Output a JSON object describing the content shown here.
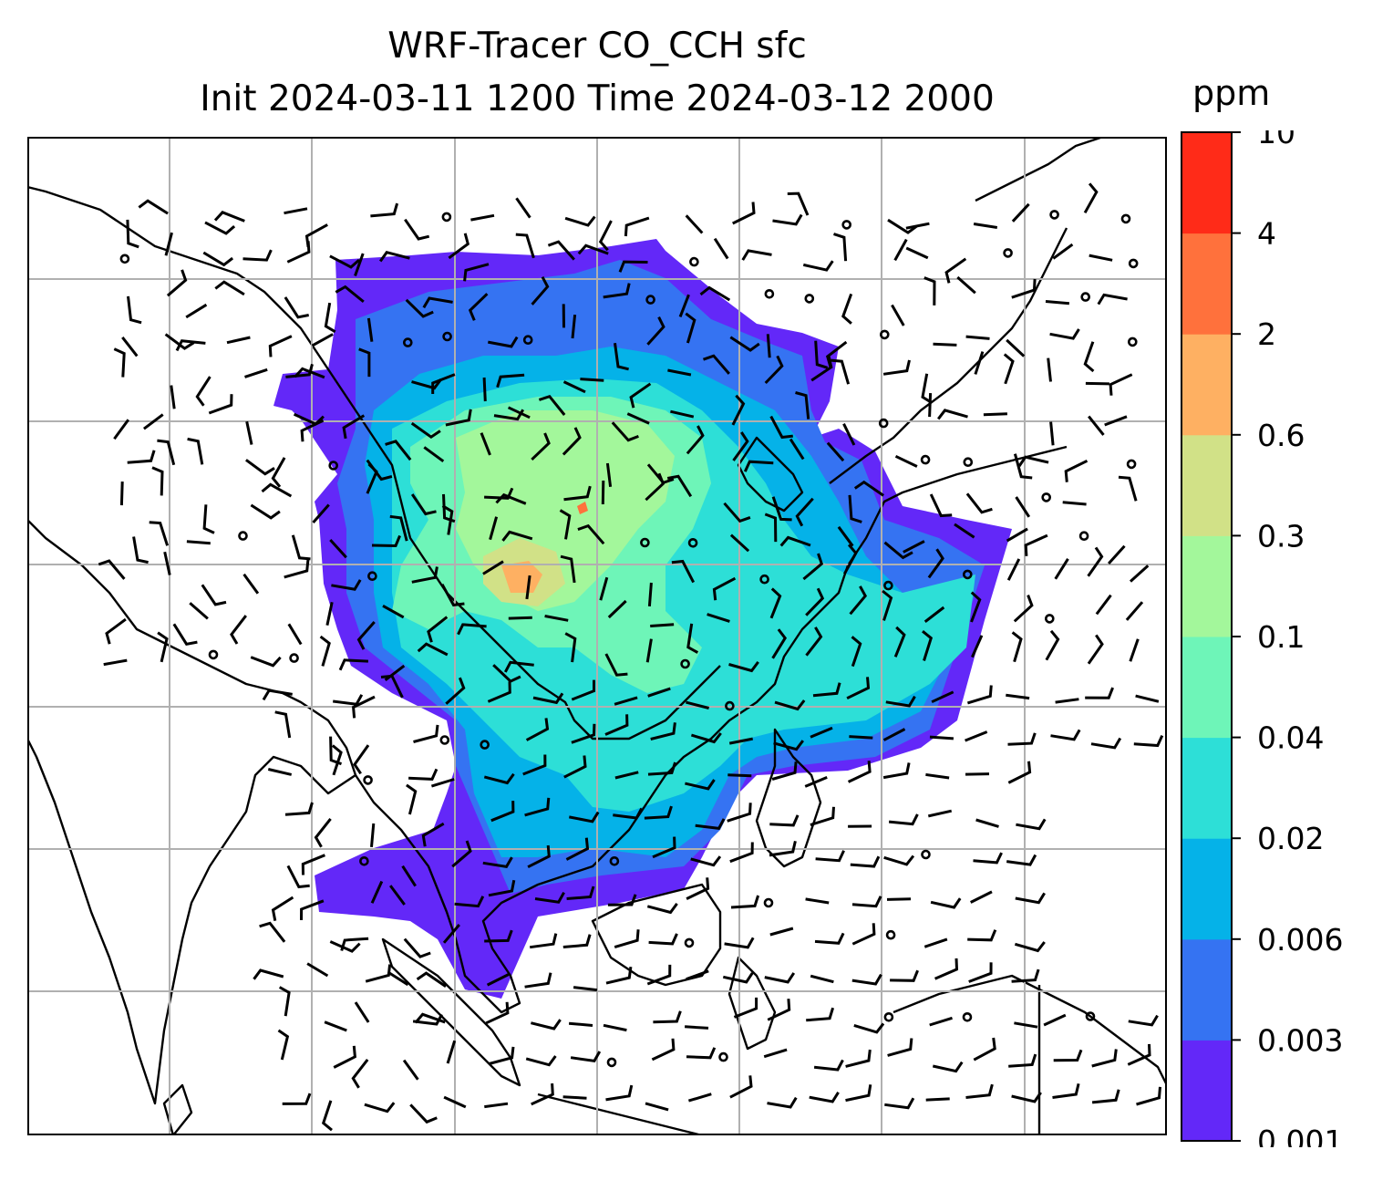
{
  "title": {
    "line1": "WRF-Tracer CO_CCH sfc",
    "line2": "Init 2024-03-11 1200 Time 2024-03-12 2000"
  },
  "colorbar": {
    "unit": "ppm",
    "levels": [
      "0.001",
      "0.003",
      "0.006",
      "0.02",
      "0.04",
      "0.1",
      "0.3",
      "0.6",
      "2",
      "4",
      "10"
    ],
    "colors": [
      "#6328f8",
      "#3573f2",
      "#05b2e8",
      "#2ddfd7",
      "#6ef5b8",
      "#a3f79b",
      "#d1e187",
      "#feb062",
      "#ff713c",
      "#ff2b18"
    ]
  },
  "map": {
    "gridlines": "on",
    "shown": "CO tracer concentration field with surface wind barbs over South/East/Southeast Asia"
  }
}
